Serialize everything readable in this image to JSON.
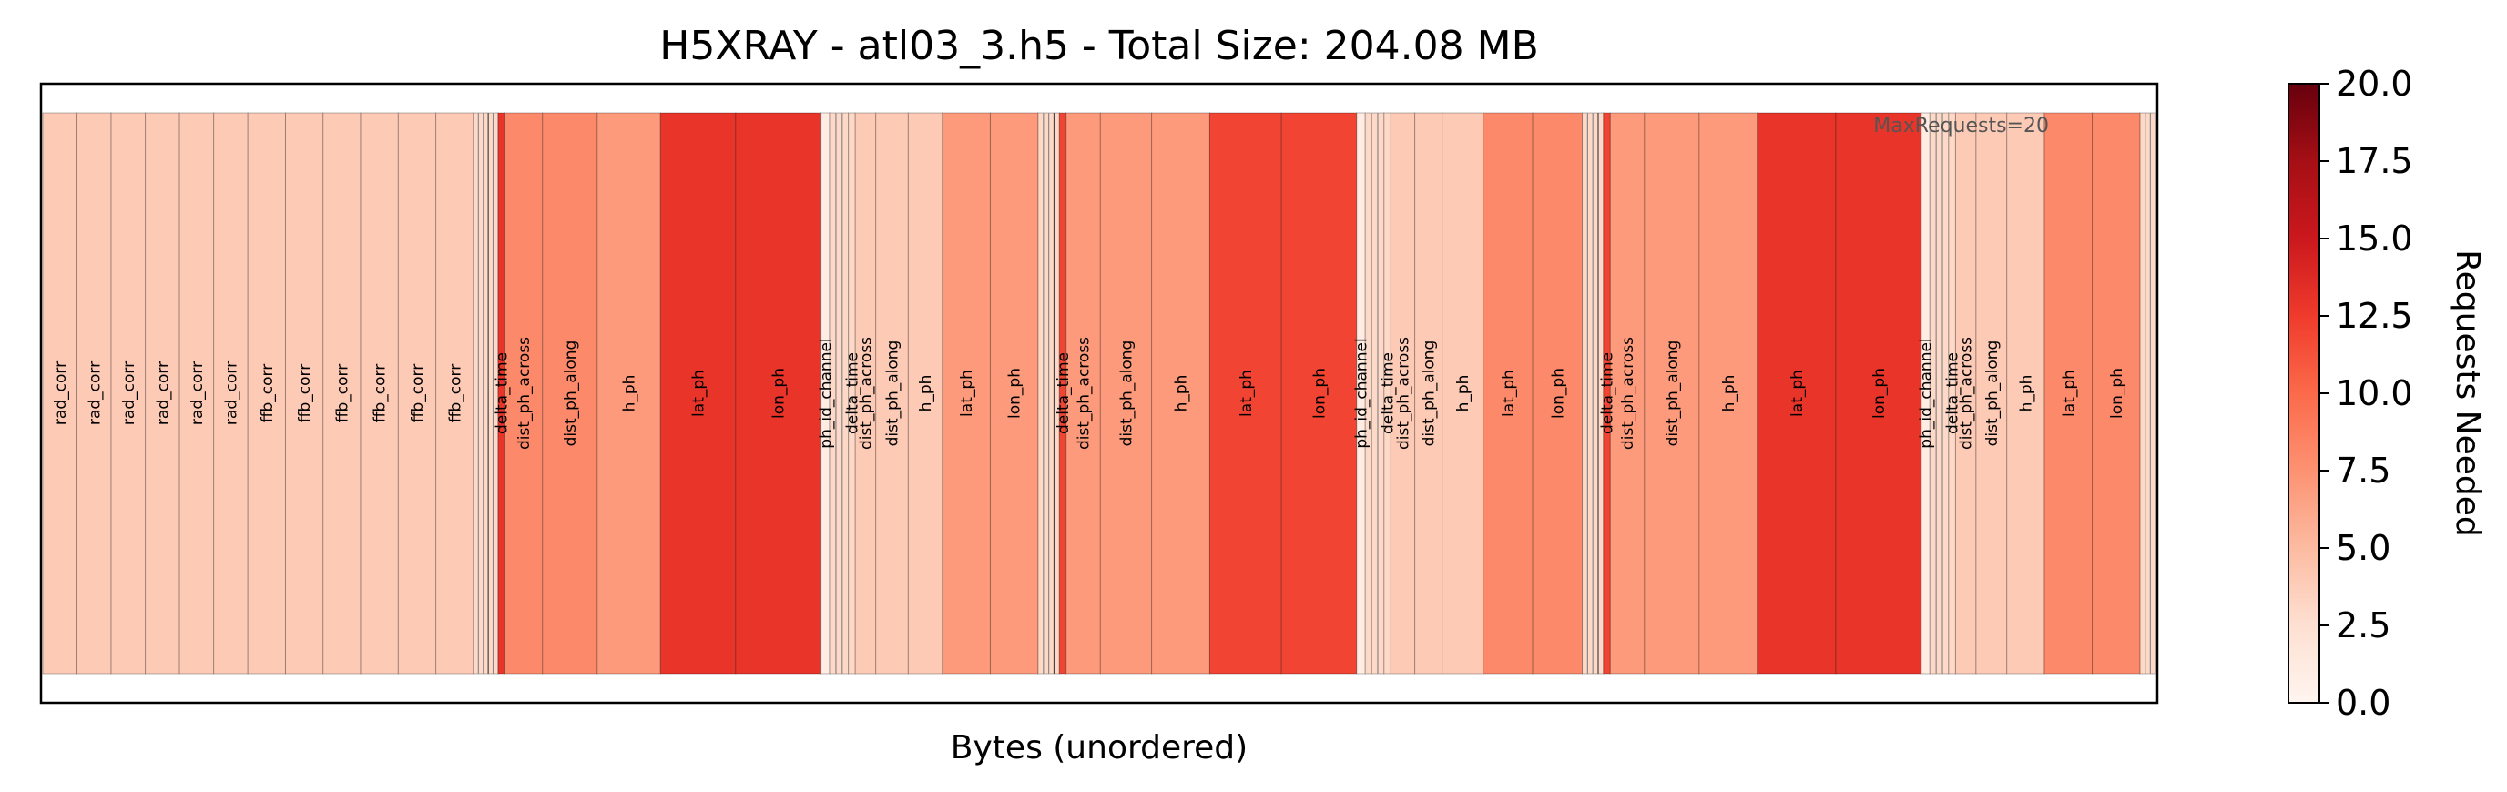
{
  "chart_data": {
    "type": "heatmap",
    "title": "H5XRAY - atl03_3.h5 - Total Size: 204.08 MB",
    "xlabel": "Bytes (unordered)",
    "ylabel": "",
    "annotation": "MaxRequests=20",
    "colorbar": {
      "label": "Requests Needed",
      "range": [
        0,
        20
      ],
      "ticks": [
        "0.0",
        "2.5",
        "5.0",
        "7.5",
        "10.0",
        "12.5",
        "15.0",
        "17.5",
        "20.0"
      ],
      "colormap": "Reds"
    },
    "segments": [
      {
        "label": "rad_corr",
        "size": 1.0,
        "requests": 4
      },
      {
        "label": "rad_corr",
        "size": 1.0,
        "requests": 4
      },
      {
        "label": "rad_corr",
        "size": 1.0,
        "requests": 4
      },
      {
        "label": "rad_corr",
        "size": 1.0,
        "requests": 4
      },
      {
        "label": "rad_corr",
        "size": 1.0,
        "requests": 4
      },
      {
        "label": "rad_corr",
        "size": 1.0,
        "requests": 4
      },
      {
        "label": "ffb_corr",
        "size": 1.1,
        "requests": 4
      },
      {
        "label": "ffb_corr",
        "size": 1.1,
        "requests": 4
      },
      {
        "label": "ffb_corr",
        "size": 1.1,
        "requests": 4
      },
      {
        "label": "ffb_corr",
        "size": 1.1,
        "requests": 4
      },
      {
        "label": "ffb_corr",
        "size": 1.1,
        "requests": 4
      },
      {
        "label": "ffb_corr",
        "size": 1.1,
        "requests": 4
      },
      {
        "label": "",
        "size": 0.72,
        "requests": 3
      },
      {
        "label": "delta_time",
        "size": 0.2,
        "requests": 13
      },
      {
        "label": "dist_ph_across",
        "size": 1.1,
        "requests": 8
      },
      {
        "label": "dist_ph_along",
        "size": 1.6,
        "requests": 8
      },
      {
        "label": "h_ph",
        "size": 1.85,
        "requests": 7
      },
      {
        "label": "lat_ph",
        "size": 2.2,
        "requests": 13
      },
      {
        "label": "lon_ph",
        "size": 2.5,
        "requests": 13
      },
      {
        "label": "ph_id_channel",
        "size": 0.25,
        "requests": 1
      },
      {
        "label": "",
        "size": 0.55,
        "requests": 3
      },
      {
        "label": "delta_time",
        "size": 0.2,
        "requests": 3
      },
      {
        "label": "dist_ph_across",
        "size": 0.6,
        "requests": 4
      },
      {
        "label": "dist_ph_along",
        "size": 0.95,
        "requests": 4
      },
      {
        "label": "h_ph",
        "size": 1.0,
        "requests": 4
      },
      {
        "label": "lat_ph",
        "size": 1.4,
        "requests": 7
      },
      {
        "label": "lon_ph",
        "size": 1.4,
        "requests": 7
      },
      {
        "label": "",
        "size": 0.62,
        "requests": 3
      },
      {
        "label": "delta_time",
        "size": 0.2,
        "requests": 12
      },
      {
        "label": "dist_ph_across",
        "size": 1.0,
        "requests": 7
      },
      {
        "label": "dist_ph_along",
        "size": 1.5,
        "requests": 7
      },
      {
        "label": "h_ph",
        "size": 1.7,
        "requests": 7
      },
      {
        "label": "lat_ph",
        "size": 2.1,
        "requests": 12
      },
      {
        "label": "lon_ph",
        "size": 2.2,
        "requests": 12
      },
      {
        "label": "ph_id_channel",
        "size": 0.25,
        "requests": 1
      },
      {
        "label": "",
        "size": 0.55,
        "requests": 3
      },
      {
        "label": "delta_time",
        "size": 0.2,
        "requests": 3
      },
      {
        "label": "dist_ph_across",
        "size": 0.7,
        "requests": 4
      },
      {
        "label": "dist_ph_along",
        "size": 0.8,
        "requests": 4
      },
      {
        "label": "h_ph",
        "size": 1.2,
        "requests": 4
      },
      {
        "label": "lat_ph",
        "size": 1.45,
        "requests": 8
      },
      {
        "label": "lon_ph",
        "size": 1.45,
        "requests": 8
      },
      {
        "label": "",
        "size": 0.62,
        "requests": 3
      },
      {
        "label": "delta_time",
        "size": 0.2,
        "requests": 12
      },
      {
        "label": "dist_ph_across",
        "size": 1.0,
        "requests": 7
      },
      {
        "label": "dist_ph_along",
        "size": 1.6,
        "requests": 7
      },
      {
        "label": "h_ph",
        "size": 1.7,
        "requests": 7
      },
      {
        "label": "lat_ph",
        "size": 2.3,
        "requests": 13
      },
      {
        "label": "lon_ph",
        "size": 2.5,
        "requests": 13
      },
      {
        "label": "ph_id_channel",
        "size": 0.25,
        "requests": 1
      },
      {
        "label": "",
        "size": 0.55,
        "requests": 3
      },
      {
        "label": "delta_time",
        "size": 0.2,
        "requests": 3
      },
      {
        "label": "dist_ph_across",
        "size": 0.6,
        "requests": 4
      },
      {
        "label": "dist_ph_along",
        "size": 0.9,
        "requests": 4
      },
      {
        "label": "h_ph",
        "size": 1.1,
        "requests": 4
      },
      {
        "label": "lat_ph",
        "size": 1.4,
        "requests": 8
      },
      {
        "label": "lon_ph",
        "size": 1.4,
        "requests": 8
      },
      {
        "label": "",
        "size": 0.45,
        "requests": 3
      }
    ]
  }
}
